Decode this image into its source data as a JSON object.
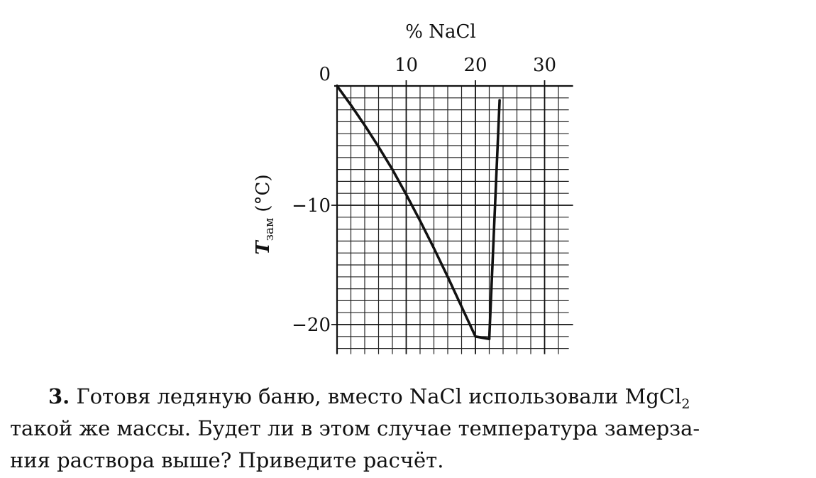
{
  "chart_data": {
    "type": "line",
    "x_axis_label": "% NaCl",
    "y_axis_label_main": "T",
    "y_axis_label_sub": "зам",
    "y_axis_unit": "(°C)",
    "x_ticks": [
      "0",
      "10",
      "20",
      "30"
    ],
    "y_ticks": [
      "0",
      "−10",
      "−20"
    ],
    "xlim": [
      0,
      33.5
    ],
    "ylim": [
      -22,
      0
    ],
    "x_axis_position": "top",
    "grid": true,
    "grid_minor_x": 2,
    "grid_minor_y": 1,
    "series": [
      {
        "x": [
          0,
          2,
          4,
          6,
          8,
          10,
          12,
          14,
          16,
          18,
          20,
          22
        ],
        "y": [
          0,
          -1.6,
          -3.3,
          -5.1,
          -7.0,
          -9.1,
          -11.3,
          -13.6,
          -16.0,
          -18.5,
          -21.0,
          -21.2
        ]
      },
      {
        "x": [
          22,
          23.5
        ],
        "y": [
          -21.2,
          -1.2
        ]
      }
    ]
  },
  "problem": {
    "number": "3.",
    "line1_text": "Готовя ледяную баню, вместо NaCl использовали MgCl",
    "line1_sub": "2",
    "line2": "такой же массы. Будет ли в этом случае температура замерза-",
    "line3": "ния раствора выше? Приведите расчёт."
  }
}
